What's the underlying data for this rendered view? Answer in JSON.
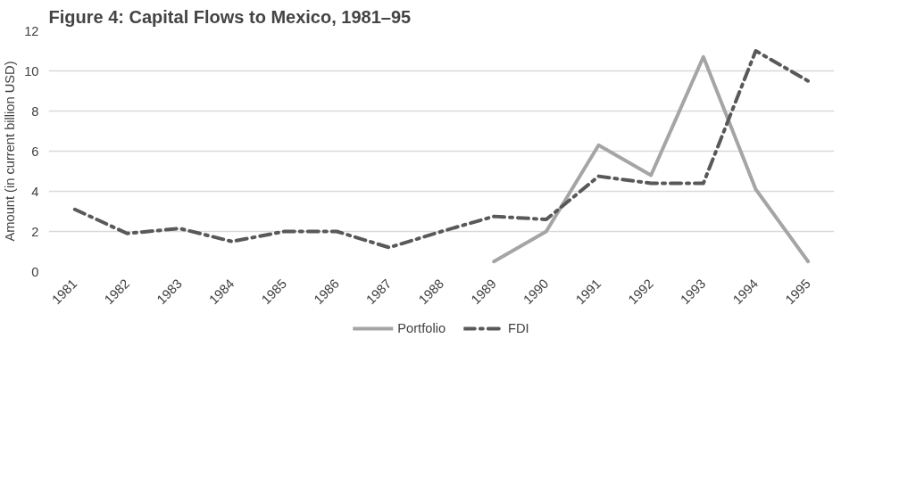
{
  "chart_data": {
    "type": "line",
    "title": "Figure 4: Capital Flows to Mexico, 1981–95",
    "ylabel": "Amount (in current billion USD)",
    "categories": [
      "1981",
      "1982",
      "1983",
      "1984",
      "1985",
      "1986",
      "1987",
      "1988",
      "1989",
      "1990",
      "1991",
      "1992",
      "1993",
      "1994",
      "1995"
    ],
    "series": [
      {
        "name": "Portfolio",
        "color": "#a5a5a5",
        "line_style": "solid",
        "values": [
          null,
          null,
          null,
          null,
          null,
          null,
          null,
          null,
          0.5,
          2.0,
          6.3,
          4.8,
          10.7,
          4.1,
          0.5
        ]
      },
      {
        "name": "FDI",
        "color": "#595959",
        "line_style": "dashed",
        "values": [
          3.1,
          1.9,
          2.15,
          1.5,
          2.0,
          2.0,
          1.2,
          2.0,
          2.75,
          2.6,
          4.75,
          4.4,
          4.4,
          11.0,
          9.5
        ]
      }
    ],
    "ylim": [
      0,
      12
    ],
    "yticks": [
      0,
      2,
      4,
      6,
      8,
      10,
      12
    ],
    "grid": "y",
    "legend": "bottom",
    "marker": "none"
  }
}
